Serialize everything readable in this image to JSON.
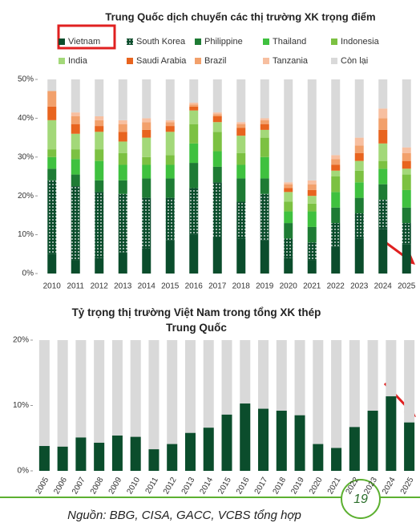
{
  "chart_data": [
    {
      "type": "stacked_bar",
      "title": "Trung Quốc dịch chuyển các thị trường XK trọng điểm",
      "categories": [
        "2010",
        "2011",
        "2012",
        "2013",
        "2014",
        "2015",
        "2016",
        "2017",
        "2018",
        "2019",
        "2020",
        "2021",
        "2022",
        "2023",
        "2024",
        "2025"
      ],
      "series": [
        {
          "name": "Vietnam",
          "color": "#0b4d2c",
          "values": [
            5,
            3.5,
            4,
            5.5,
            6.5,
            8.5,
            10,
            9.5,
            9,
            8.5,
            4,
            3.5,
            7,
            9,
            11.5,
            7.5
          ]
        },
        {
          "name": "South Korea",
          "color": "#0b4d2c",
          "pattern": "dots",
          "values": [
            19,
            19,
            17,
            15,
            13,
            11,
            12,
            14,
            9.5,
            12,
            5,
            4.5,
            6,
            6.5,
            7.5,
            5.5
          ]
        },
        {
          "name": "Philippine",
          "color": "#1e7b34",
          "values": [
            3,
            3,
            3,
            3.5,
            5,
            5,
            6.5,
            4,
            6,
            4,
            4,
            4,
            4,
            4,
            4,
            4
          ]
        },
        {
          "name": "Thailand",
          "color": "#3fc13f",
          "values": [
            3,
            4,
            5,
            4,
            3.5,
            3.5,
            5,
            4,
            3.5,
            5.5,
            3,
            4,
            4,
            4,
            4,
            4.5
          ]
        },
        {
          "name": "Indonesia",
          "color": "#7cc142",
          "values": [
            2,
            2.5,
            3,
            3,
            2,
            2.5,
            5,
            5,
            3,
            5,
            2.5,
            2,
            4,
            3,
            2,
            4
          ]
        },
        {
          "name": "India",
          "color": "#a3d879",
          "values": [
            7.5,
            4,
            4.5,
            3,
            5,
            6,
            3.5,
            2.5,
            4.5,
            2,
            2.5,
            2,
            1.5,
            2.5,
            4.5,
            1.5
          ]
        },
        {
          "name": "Saudi Arabia",
          "color": "#e8641f",
          "values": [
            3.5,
            2.5,
            1.5,
            2.5,
            2,
            1.5,
            1,
            1.5,
            2,
            1.5,
            1,
            1.5,
            1.5,
            2,
            3.5,
            2
          ]
        },
        {
          "name": "Brazil",
          "color": "#f2a06b",
          "values": [
            4,
            2,
            1.5,
            2,
            2,
            1,
            0.5,
            0.5,
            1,
            1,
            1,
            1.5,
            1.5,
            2,
            3,
            2
          ]
        },
        {
          "name": "Tanzania",
          "color": "#f7bfa0",
          "values": [
            0,
            1,
            1,
            1,
            1,
            0.5,
            0.5,
            0.5,
            0.5,
            0.5,
            0.5,
            1,
            1,
            2,
            2.5,
            1.5
          ]
        },
        {
          "name": "Còn lại",
          "color": "#d9d9d9",
          "values": [
            3,
            8.5,
            9.5,
            10.5,
            10,
            10.5,
            6,
            8.5,
            11,
            10,
            26.5,
            26,
            19.5,
            15,
            7.5,
            17.5
          ]
        }
      ],
      "ylim": [
        0,
        50
      ],
      "yticks": [
        {
          "value": 0,
          "label": "0%"
        },
        {
          "value": 10,
          "label": "10%"
        },
        {
          "value": 20,
          "label": "20%"
        },
        {
          "value": 30,
          "label": "30%"
        },
        {
          "value": 40,
          "label": "40%"
        },
        {
          "value": 50,
          "label": "50%"
        }
      ],
      "legend": "top"
    },
    {
      "type": "bar",
      "title": "Tỷ trọng thị trường Việt Nam trong tổng XK thép Trung Quốc",
      "categories": [
        "2005",
        "2006",
        "2007",
        "2008",
        "2009",
        "2010",
        "2011",
        "2012",
        "2013",
        "2014",
        "2015",
        "2016",
        "2017",
        "2018",
        "2019",
        "2020",
        "2021",
        "2022",
        "2023",
        "2024",
        "2025"
      ],
      "values": [
        3.8,
        3.7,
        5.1,
        4.3,
        5.4,
        5.2,
        3.3,
        4.1,
        5.8,
        6.6,
        8.6,
        10.3,
        9.5,
        9.2,
        8.5,
        4.1,
        3.5,
        6.7,
        9.2,
        11.4,
        7.4
      ],
      "color": "#0b4d2c",
      "ylim": [
        0,
        20
      ],
      "yticks": [
        {
          "value": 0,
          "label": "0%"
        },
        {
          "value": 10,
          "label": "10%"
        },
        {
          "value": 20,
          "label": "20%"
        }
      ]
    }
  ],
  "footer": {
    "source": "Nguồn: BBG, CISA, GACC, VCBS tổng hợp",
    "page": "19"
  }
}
